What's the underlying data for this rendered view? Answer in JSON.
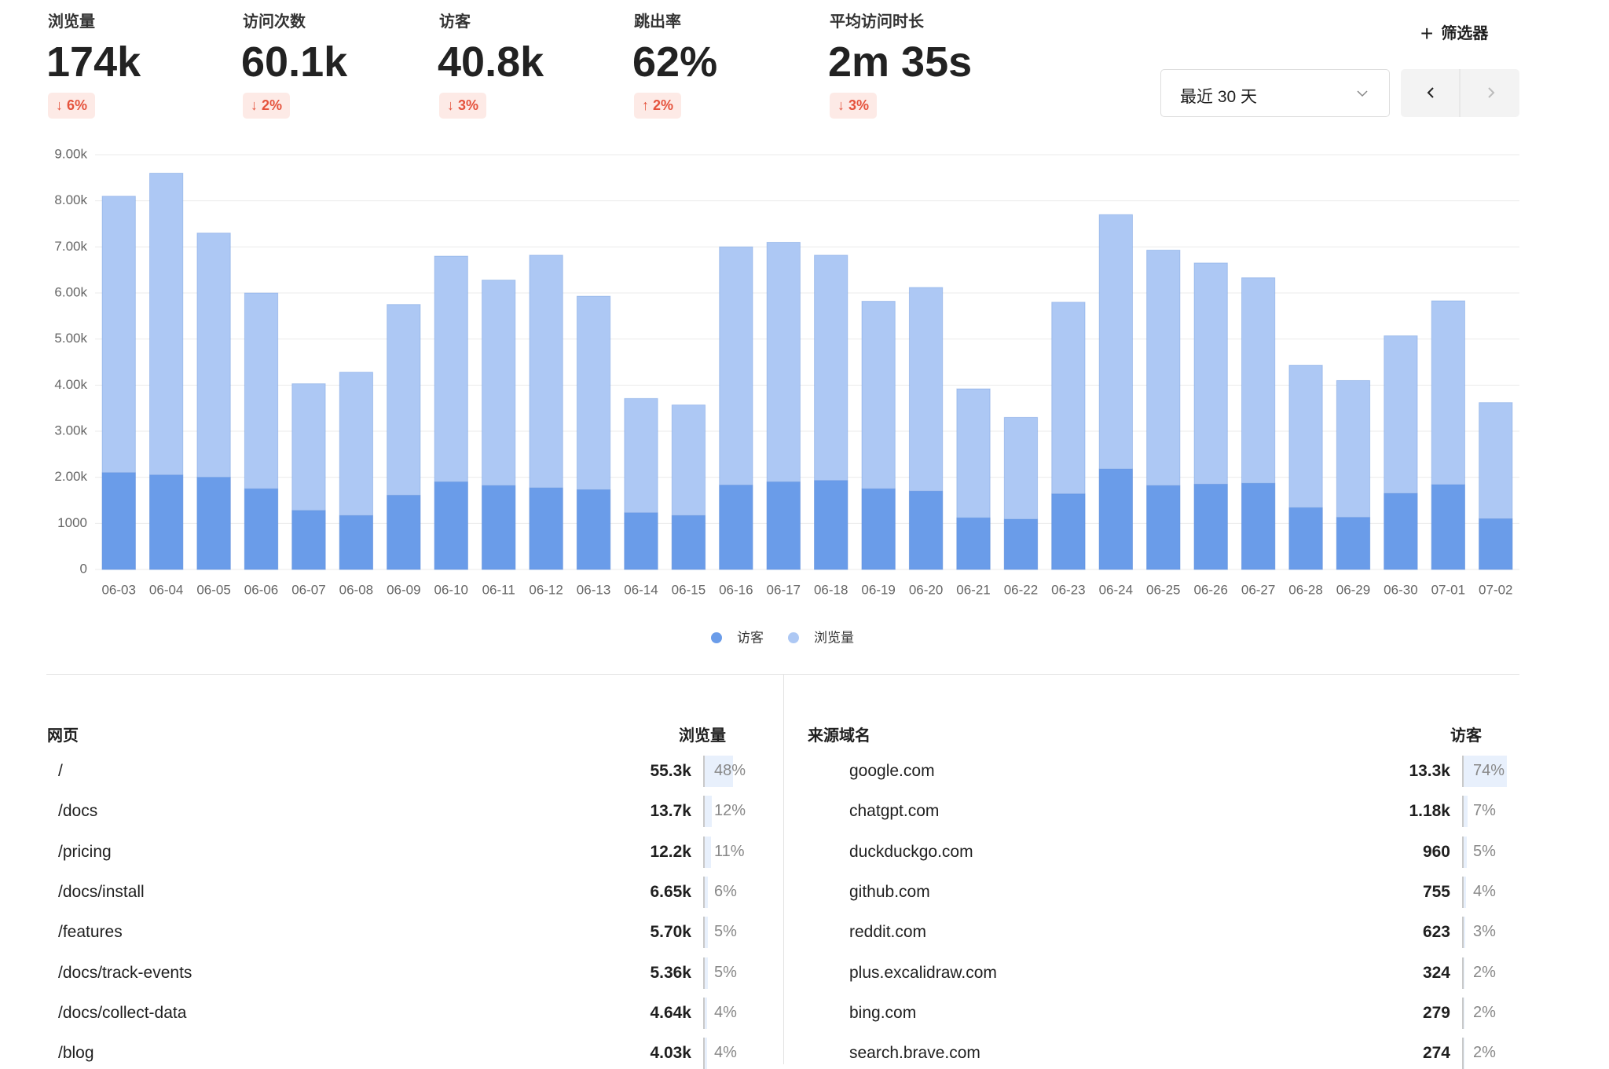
{
  "stats": [
    {
      "label": "浏览量",
      "value": "174k",
      "change": "↓ 6%"
    },
    {
      "label": "访问次数",
      "value": "60.1k",
      "change": "↓ 2%"
    },
    {
      "label": "访客",
      "value": "40.8k",
      "change": "↓ 3%"
    },
    {
      "label": "跳出率",
      "value": "62%",
      "change": "↑ 2%"
    },
    {
      "label": "平均访问时长",
      "value": "2m 35s",
      "change": "↓ 3%"
    }
  ],
  "controls": {
    "filter": "筛选器",
    "range": "最近 30 天"
  },
  "chart_data": {
    "type": "bar",
    "categories": [
      "06-03",
      "06-04",
      "06-05",
      "06-06",
      "06-07",
      "06-08",
      "06-09",
      "06-10",
      "06-11",
      "06-12",
      "06-13",
      "06-14",
      "06-15",
      "06-16",
      "06-17",
      "06-18",
      "06-19",
      "06-20",
      "06-21",
      "06-22",
      "06-23",
      "06-24",
      "06-25",
      "06-26",
      "06-27",
      "06-28",
      "06-29",
      "06-30",
      "07-01",
      "07-02"
    ],
    "series": [
      {
        "name": "访客",
        "color": "#6a9ce9",
        "values": [
          2100,
          2050,
          2000,
          1750,
          1280,
          1170,
          1610,
          1900,
          1820,
          1770,
          1730,
          1230,
          1170,
          1830,
          1900,
          1930,
          1750,
          1700,
          1120,
          1090,
          1640,
          2180,
          1820,
          1850,
          1870,
          1340,
          1130,
          1650,
          1840,
          1100
        ]
      },
      {
        "name": "浏览量",
        "color": "#adc8f4",
        "values": [
          8100,
          8600,
          7300,
          6000,
          4030,
          4280,
          5750,
          6800,
          6280,
          6820,
          5930,
          3710,
          3570,
          7000,
          7100,
          6820,
          5820,
          6120,
          3920,
          3300,
          5800,
          7700,
          6930,
          6650,
          6330,
          4430,
          4100,
          5070,
          5830,
          3620
        ]
      }
    ],
    "ylim": [
      0,
      9000
    ],
    "yticks": [
      0,
      1000,
      {
        "value": 2000,
        "label": "2.00k"
      },
      {
        "value": 3000,
        "label": "3.00k"
      },
      {
        "value": 4000,
        "label": "4.00k"
      },
      {
        "value": 5000,
        "label": "5.00k"
      },
      {
        "value": 6000,
        "label": "6.00k"
      },
      {
        "value": 7000,
        "label": "7.00k"
      },
      {
        "value": 8000,
        "label": "8.00k"
      },
      {
        "value": 9000,
        "label": "9.00k"
      }
    ],
    "grid": true,
    "legend": "bottom"
  },
  "pages": {
    "title": "网页",
    "metric": "浏览量",
    "rows": [
      [
        "/",
        "55.3k",
        "48%"
      ],
      [
        "/docs",
        "13.7k",
        "12%"
      ],
      [
        "/pricing",
        "12.2k",
        "11%"
      ],
      [
        "/docs/install",
        "6.65k",
        "6%"
      ],
      [
        "/features",
        "5.70k",
        "5%"
      ],
      [
        "/docs/track-events",
        "5.36k",
        "5%"
      ],
      [
        "/docs/collect-data",
        "4.64k",
        "4%"
      ],
      [
        "/blog",
        "4.03k",
        "4%"
      ]
    ]
  },
  "referrers": {
    "title": "来源域名",
    "metric": "访客",
    "rows": [
      [
        "google.com",
        "13.3k",
        "74%"
      ],
      [
        "chatgpt.com",
        "1.18k",
        "7%"
      ],
      [
        "duckduckgo.com",
        "960",
        "5%"
      ],
      [
        "github.com",
        "755",
        "4%"
      ],
      [
        "reddit.com",
        "623",
        "3%"
      ],
      [
        "plus.excalidraw.com",
        "324",
        "2%"
      ],
      [
        "bing.com",
        "279",
        "2%"
      ],
      [
        "search.brave.com",
        "274",
        "2%"
      ]
    ]
  }
}
